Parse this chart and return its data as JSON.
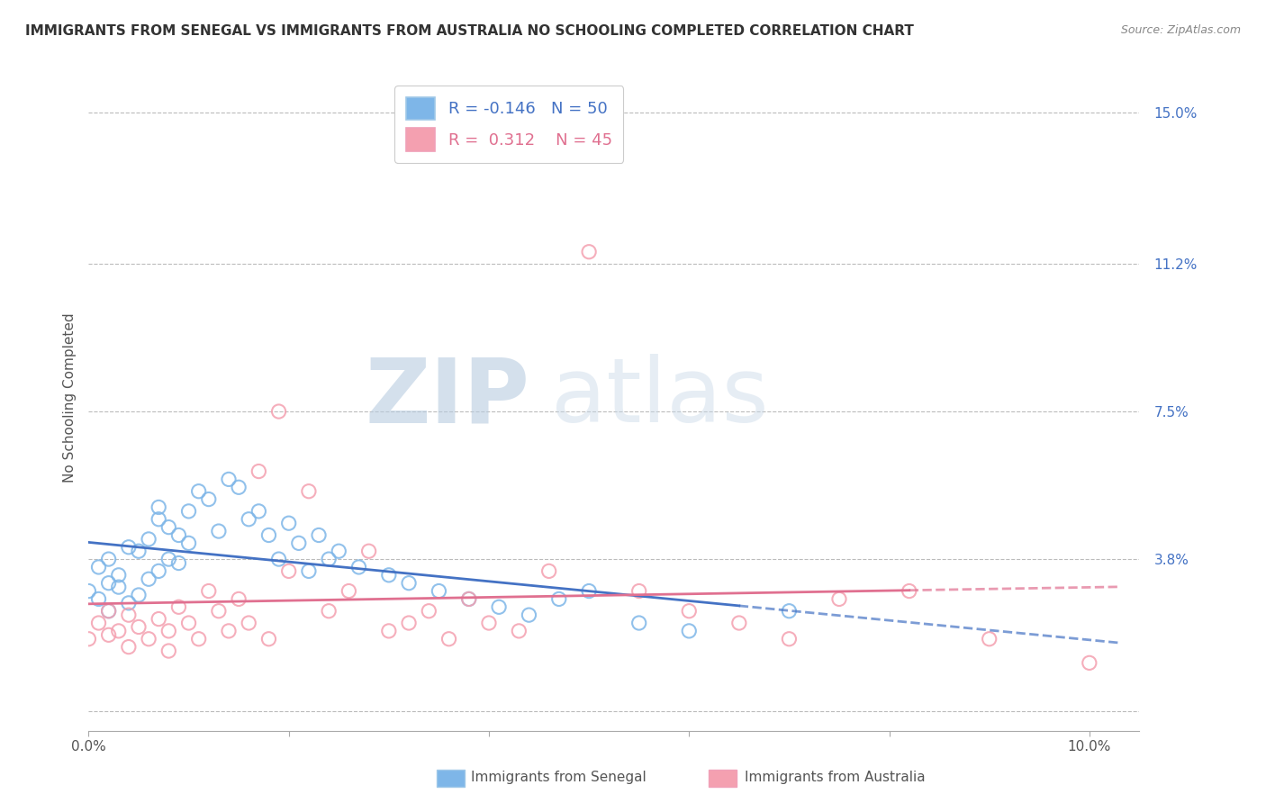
{
  "title": "IMMIGRANTS FROM SENEGAL VS IMMIGRANTS FROM AUSTRALIA NO SCHOOLING COMPLETED CORRELATION CHART",
  "source": "Source: ZipAtlas.com",
  "ylabel": "No Schooling Completed",
  "xlim": [
    0.0,
    0.105
  ],
  "ylim": [
    -0.005,
    0.162
  ],
  "senegal_color": "#7EB6E8",
  "australia_color": "#F4A0B0",
  "senegal_line_color": "#4472C4",
  "australia_line_color": "#E07090",
  "grid_color": "#BBBBBB",
  "legend_R_senegal": "-0.146",
  "legend_N_senegal": "50",
  "legend_R_australia": "0.312",
  "legend_N_australia": "45",
  "senegal_x": [
    0.0,
    0.001,
    0.001,
    0.002,
    0.002,
    0.002,
    0.003,
    0.003,
    0.004,
    0.004,
    0.005,
    0.005,
    0.006,
    0.006,
    0.007,
    0.007,
    0.007,
    0.008,
    0.008,
    0.009,
    0.009,
    0.01,
    0.01,
    0.011,
    0.012,
    0.013,
    0.014,
    0.015,
    0.016,
    0.017,
    0.018,
    0.019,
    0.02,
    0.021,
    0.022,
    0.023,
    0.024,
    0.025,
    0.027,
    0.03,
    0.032,
    0.035,
    0.038,
    0.041,
    0.044,
    0.047,
    0.05,
    0.055,
    0.06,
    0.07
  ],
  "senegal_y": [
    0.03,
    0.036,
    0.028,
    0.032,
    0.038,
    0.025,
    0.034,
    0.031,
    0.041,
    0.027,
    0.04,
    0.029,
    0.043,
    0.033,
    0.048,
    0.051,
    0.035,
    0.046,
    0.038,
    0.044,
    0.037,
    0.042,
    0.05,
    0.055,
    0.053,
    0.045,
    0.058,
    0.056,
    0.048,
    0.05,
    0.044,
    0.038,
    0.047,
    0.042,
    0.035,
    0.044,
    0.038,
    0.04,
    0.036,
    0.034,
    0.032,
    0.03,
    0.028,
    0.026,
    0.024,
    0.028,
    0.03,
    0.022,
    0.02,
    0.025
  ],
  "australia_x": [
    0.0,
    0.001,
    0.002,
    0.002,
    0.003,
    0.004,
    0.004,
    0.005,
    0.006,
    0.007,
    0.008,
    0.008,
    0.009,
    0.01,
    0.011,
    0.012,
    0.013,
    0.014,
    0.015,
    0.016,
    0.017,
    0.018,
    0.019,
    0.02,
    0.022,
    0.024,
    0.026,
    0.028,
    0.03,
    0.032,
    0.034,
    0.036,
    0.038,
    0.04,
    0.043,
    0.046,
    0.05,
    0.055,
    0.06,
    0.065,
    0.07,
    0.075,
    0.082,
    0.09,
    0.1
  ],
  "australia_y": [
    0.018,
    0.022,
    0.019,
    0.025,
    0.02,
    0.016,
    0.024,
    0.021,
    0.018,
    0.023,
    0.02,
    0.015,
    0.026,
    0.022,
    0.018,
    0.03,
    0.025,
    0.02,
    0.028,
    0.022,
    0.06,
    0.018,
    0.075,
    0.035,
    0.055,
    0.025,
    0.03,
    0.04,
    0.02,
    0.022,
    0.025,
    0.018,
    0.028,
    0.022,
    0.02,
    0.035,
    0.115,
    0.03,
    0.025,
    0.022,
    0.018,
    0.028,
    0.03,
    0.018,
    0.012
  ],
  "title_fontsize": 11,
  "tick_fontsize": 11,
  "legend_fontsize": 13,
  "axis_label_fontsize": 11
}
